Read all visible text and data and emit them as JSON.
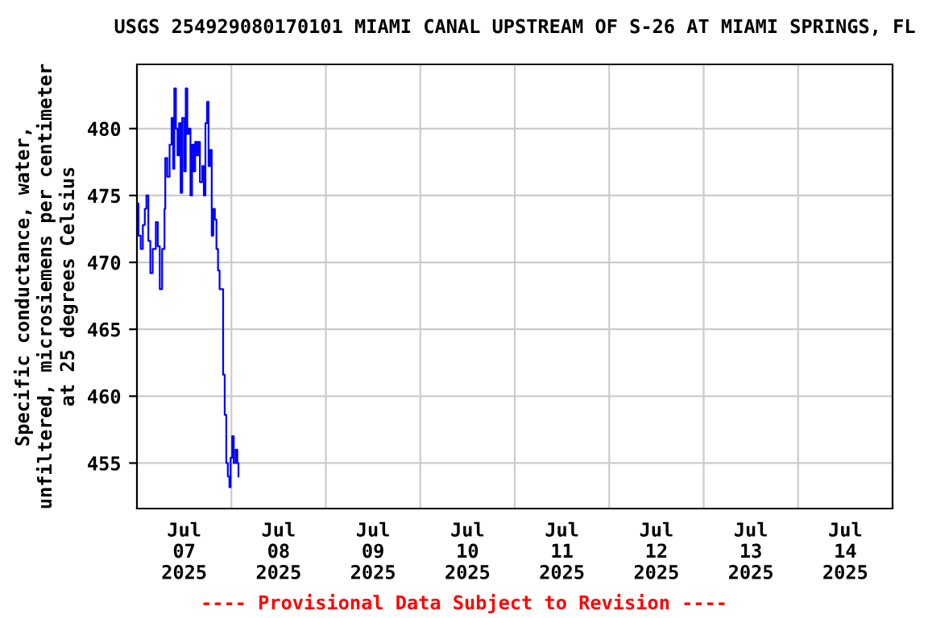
{
  "chart_data": {
    "type": "step",
    "title": "USGS 254929080170101 MIAMI CANAL UPSTREAM OF S-26 AT MIAMI SPRINGS, FL",
    "ylabel": "Specific conductance, water,\nunfiltered, microsiemens per centimeter\nat 25 degrees Celsius",
    "annotations": [
      "---- Provisional Data Subject to Revision ----"
    ],
    "series": [
      {
        "color": "#0000ff",
        "x": [
          "2025-07-07T00:00",
          "2025-07-07T00:24",
          "2025-07-07T00:57",
          "2025-07-07T01:30",
          "2025-07-07T02:00",
          "2025-07-07T02:24",
          "2025-07-07T02:54",
          "2025-07-07T03:24",
          "2025-07-07T04:00",
          "2025-07-07T04:48",
          "2025-07-07T05:18",
          "2025-07-07T05:48",
          "2025-07-07T06:24",
          "2025-07-07T07:00",
          "2025-07-07T07:12",
          "2025-07-07T07:42",
          "2025-07-07T08:18",
          "2025-07-07T08:48",
          "2025-07-07T09:12",
          "2025-07-07T09:30",
          "2025-07-07T09:54",
          "2025-07-07T10:18",
          "2025-07-07T10:42",
          "2025-07-07T11:06",
          "2025-07-07T11:30",
          "2025-07-07T12:00",
          "2025-07-07T12:24",
          "2025-07-07T12:48",
          "2025-07-07T13:12",
          "2025-07-07T13:36",
          "2025-07-07T14:00",
          "2025-07-07T14:24",
          "2025-07-07T14:48",
          "2025-07-07T15:12",
          "2025-07-07T15:36",
          "2025-07-07T16:00",
          "2025-07-07T16:36",
          "2025-07-07T17:00",
          "2025-07-07T17:24",
          "2025-07-07T17:48",
          "2025-07-07T18:12",
          "2025-07-07T18:36",
          "2025-07-07T19:00",
          "2025-07-07T19:24",
          "2025-07-07T19:48",
          "2025-07-07T20:12",
          "2025-07-07T20:36",
          "2025-07-07T21:00",
          "2025-07-07T21:36",
          "2025-07-07T21:54",
          "2025-07-07T22:18",
          "2025-07-07T22:42",
          "2025-07-07T23:06",
          "2025-07-07T23:30",
          "2025-07-07T23:48",
          "2025-07-08T00:12",
          "2025-07-08T00:36",
          "2025-07-08T01:06",
          "2025-07-08T01:30",
          "2025-07-08T01:48"
        ],
        "values": [
          474.4,
          472,
          471,
          472.8,
          474,
          475,
          471.6,
          469.2,
          471,
          473,
          471.2,
          468,
          471,
          474,
          477.8,
          476.4,
          478.8,
          480.8,
          477,
          483,
          480,
          478,
          480.4,
          475.2,
          480.8,
          476.8,
          483,
          479.6,
          480,
          475,
          478.8,
          476.8,
          479,
          478,
          479,
          476,
          477.2,
          475,
          480.4,
          482,
          477.2,
          478.4,
          472,
          474,
          473.2,
          471,
          469.4,
          468,
          468,
          461.6,
          458.6,
          455,
          454,
          453.2,
          455.4,
          457,
          455,
          456,
          455,
          454
        ]
      }
    ],
    "xlim": [
      "2025-07-07T00:00",
      "2025-07-15T00:00"
    ],
    "xticks": [
      {
        "value": "2025-07-07T12:00",
        "label": "Jul\n07\n2025"
      },
      {
        "value": "2025-07-08T00:00",
        "label": null
      },
      {
        "value": "2025-07-08T12:00",
        "label": "Jul\n08\n2025"
      },
      {
        "value": "2025-07-09T00:00",
        "label": null
      },
      {
        "value": "2025-07-09T12:00",
        "label": "Jul\n09\n2025"
      },
      {
        "value": "2025-07-10T00:00",
        "label": null
      },
      {
        "value": "2025-07-10T12:00",
        "label": "Jul\n10\n2025"
      },
      {
        "value": "2025-07-11T00:00",
        "label": null
      },
      {
        "value": "2025-07-11T12:00",
        "label": "Jul\n11\n2025"
      },
      {
        "value": "2025-07-12T00:00",
        "label": null
      },
      {
        "value": "2025-07-12T12:00",
        "label": "Jul\n12\n2025"
      },
      {
        "value": "2025-07-13T00:00",
        "label": null
      },
      {
        "value": "2025-07-13T12:00",
        "label": "Jul\n13\n2025"
      },
      {
        "value": "2025-07-14T00:00",
        "label": null
      },
      {
        "value": "2025-07-14T12:00",
        "label": "Jul\n14\n2025"
      }
    ],
    "ylim": [
      451.6,
      484.8
    ],
    "yticks": [
      455,
      460,
      465,
      470,
      475,
      480
    ],
    "grid": true
  }
}
